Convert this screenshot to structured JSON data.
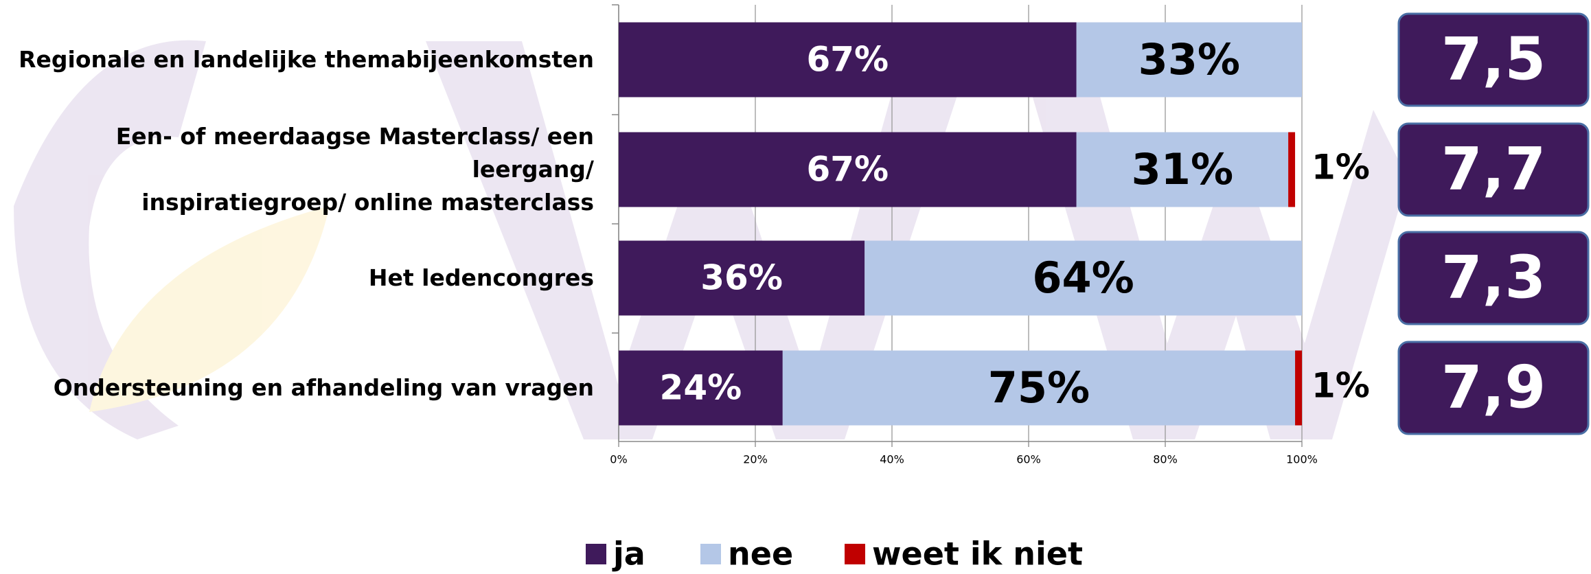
{
  "chart_data": {
    "type": "stacked-bar-horizontal",
    "categories": [
      "Regionale en landelijke themabijeenkomsten",
      "Een- of meerdaagse Masterclass/ een leergang/\ninspiratiegroep/ online masterclass",
      "Het ledencongres",
      "Ondersteuning en afhandeling van vragen"
    ],
    "series": [
      {
        "name": "ja",
        "color": "#3f1a5b",
        "values": [
          67,
          67,
          36,
          24
        ],
        "value_labels": [
          "67%",
          "67%",
          "36%",
          "24%"
        ]
      },
      {
        "name": "nee",
        "color": "#b4c7e7",
        "values": [
          33,
          31,
          64,
          75
        ],
        "value_labels": [
          "33%",
          "31%",
          "64%",
          "75%"
        ]
      },
      {
        "name": "weet ik niet",
        "color": "#c00000",
        "values": [
          0,
          1,
          0,
          1
        ],
        "value_labels": [
          null,
          "1%",
          null,
          "1%"
        ]
      }
    ],
    "xlim": [
      0,
      100
    ],
    "xticks": [
      {
        "value": 0,
        "label": "0%"
      },
      {
        "value": 20,
        "label": "20%"
      },
      {
        "value": 40,
        "label": "40%"
      },
      {
        "value": 60,
        "label": "60%"
      },
      {
        "value": 80,
        "label": "80%"
      },
      {
        "value": 100,
        "label": "100%"
      }
    ],
    "grid": true,
    "legend": "bottom",
    "scores": [
      {
        "value": 7.5,
        "label": "7,5"
      },
      {
        "value": 7.7,
        "label": "7,7"
      },
      {
        "value": 7.3,
        "label": "7,3"
      },
      {
        "value": 7.9,
        "label": "7,9"
      }
    ],
    "score_color": "#3f1a5b"
  }
}
